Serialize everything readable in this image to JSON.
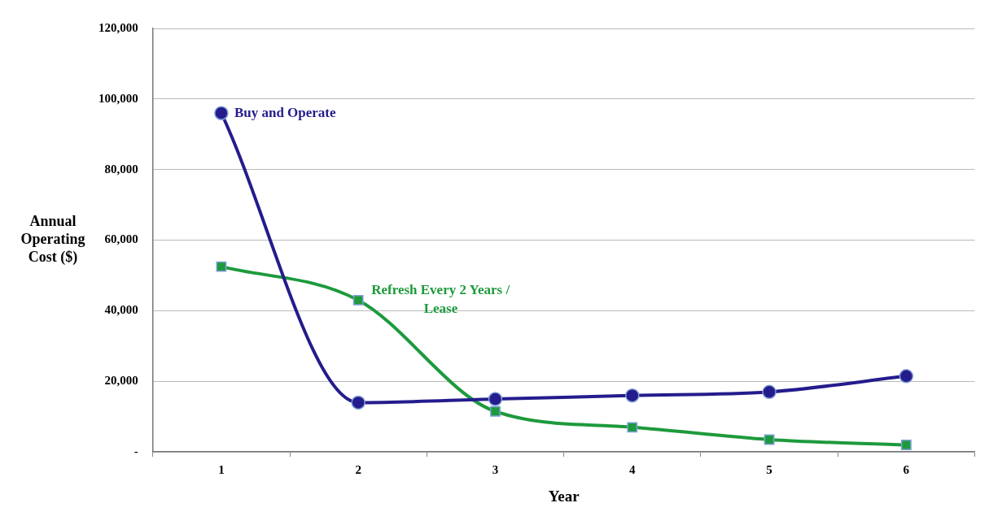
{
  "chart_data": {
    "type": "line",
    "xlabel": "Year",
    "ylabel": "Annual Operating Cost ($)",
    "categories": [
      "1",
      "2",
      "3",
      "4",
      "5",
      "6"
    ],
    "series": [
      {
        "name": "Buy and Operate",
        "color": "#241c8c",
        "marker": "circle",
        "values": [
          96000,
          14000,
          15000,
          16000,
          17000,
          21500
        ]
      },
      {
        "name": "Refresh Every 2 Years / Lease",
        "color": "#1d9a3c",
        "marker": "square",
        "values": [
          52500,
          43000,
          11500,
          7000,
          3500,
          2000
        ]
      }
    ],
    "ylim": [
      0,
      120000
    ],
    "yticks": [
      {
        "value": 0,
        "label": "-"
      },
      {
        "value": 20000,
        "label": "20,000"
      },
      {
        "value": 40000,
        "label": "40,000"
      },
      {
        "value": 60000,
        "label": "60,000"
      },
      {
        "value": 80000,
        "label": "80,000"
      },
      {
        "value": 100000,
        "label": "100,000"
      },
      {
        "value": 120000,
        "label": "120,000"
      }
    ],
    "grid": "y",
    "legend": false
  }
}
